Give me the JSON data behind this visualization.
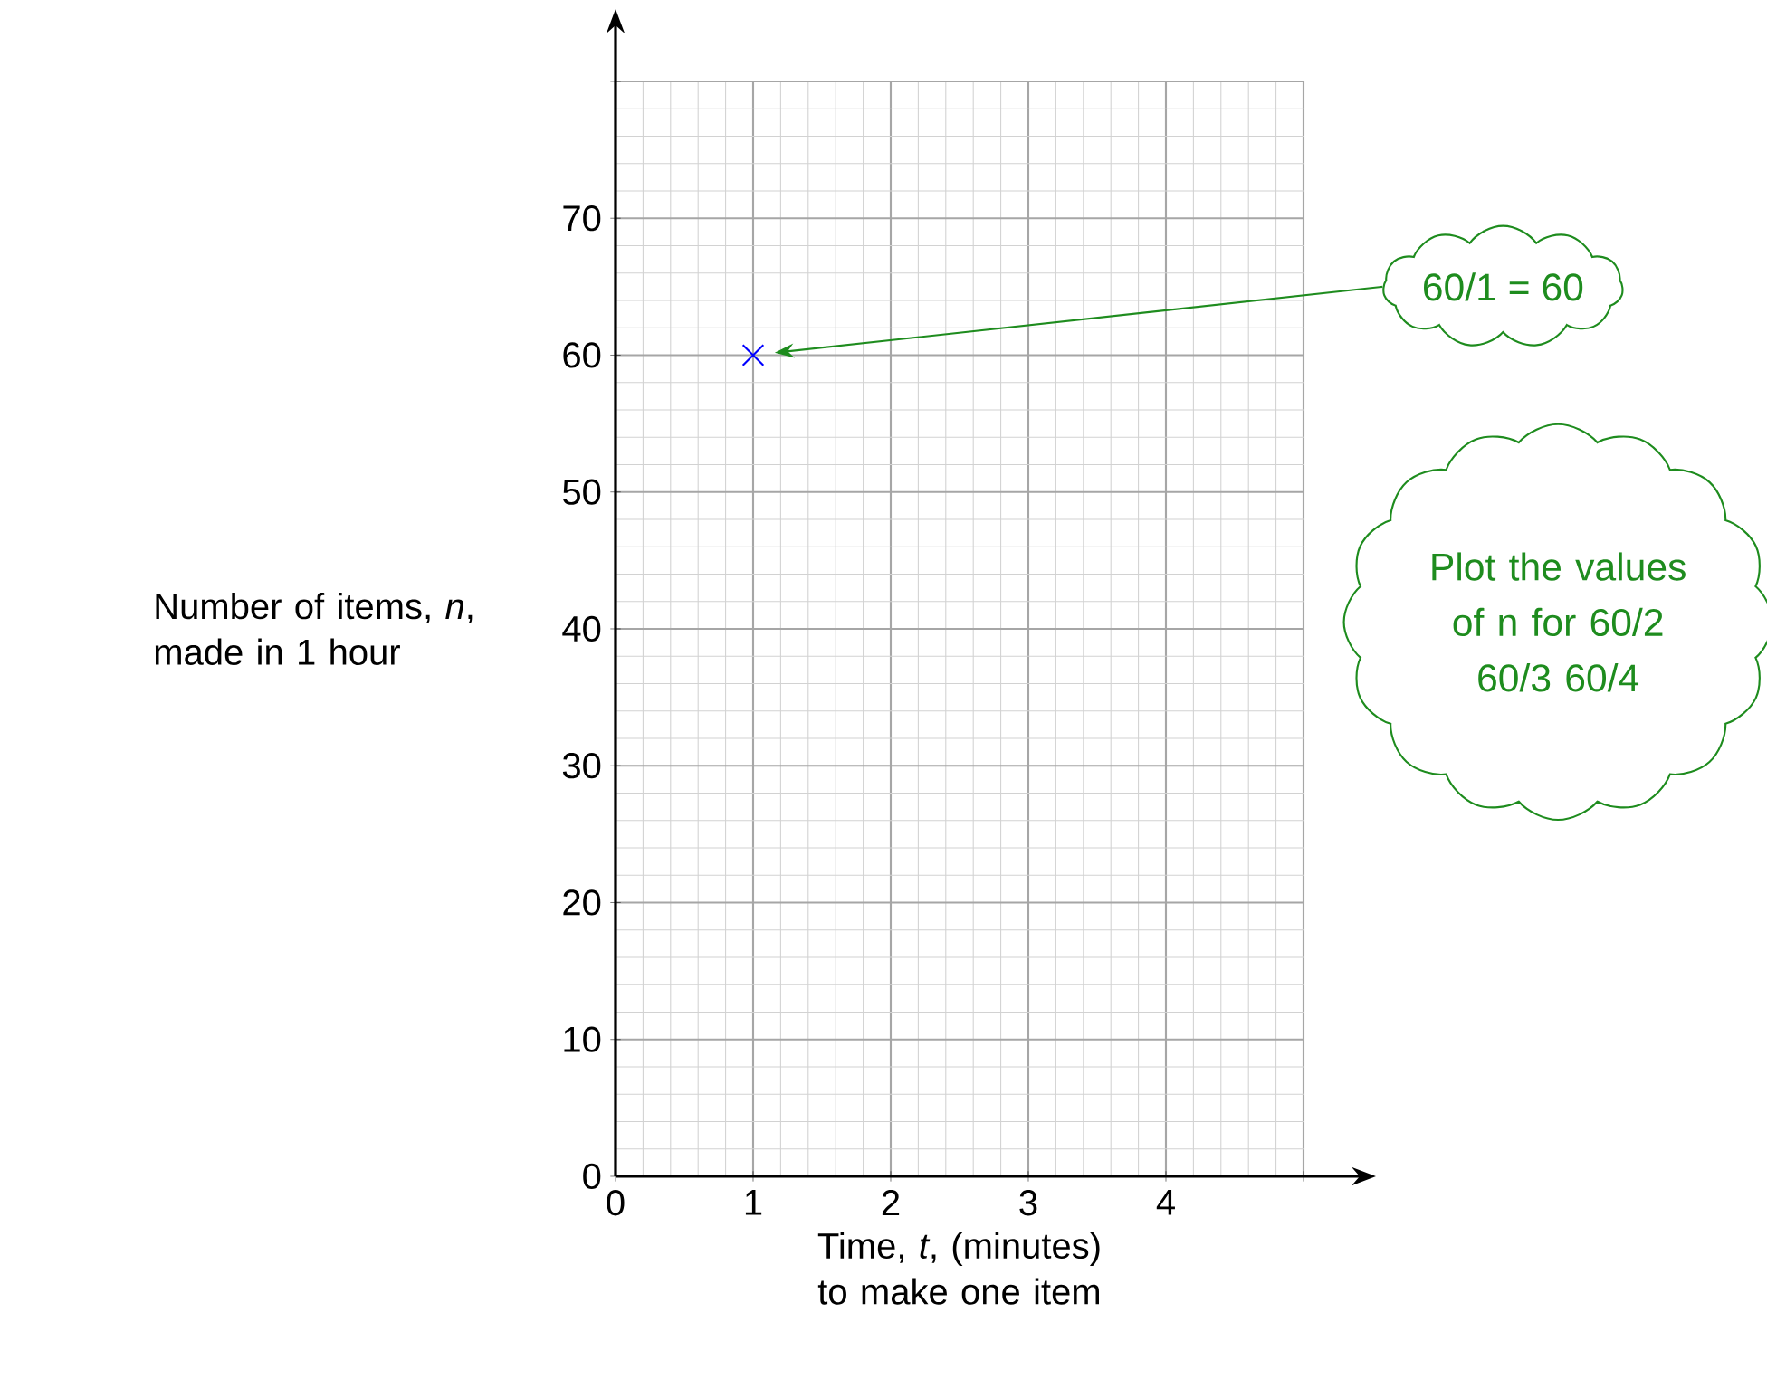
{
  "chart_data": {
    "type": "scatter",
    "xlabel": "Time, *t*, (minutes) to make one item",
    "ylabel": "Number of items, *n*, made in 1 hour",
    "x": [
      1
    ],
    "values": [
      60
    ],
    "color": "#0000ff",
    "marker": "cross",
    "xlim": [
      0,
      5
    ],
    "ylim": [
      0,
      80
    ],
    "xticks": [
      0,
      1,
      2,
      3,
      4,
      {
        "value": 5,
        "label": null
      }
    ],
    "yticks": [
      0,
      10,
      20,
      30,
      40,
      50,
      60,
      70,
      {
        "value": 80,
        "label": null
      }
    ],
    "grid": true,
    "annotations": [
      "60/1 = 60",
      "Plot the values of n for 60/2 60/3 60/4"
    ]
  }
}
